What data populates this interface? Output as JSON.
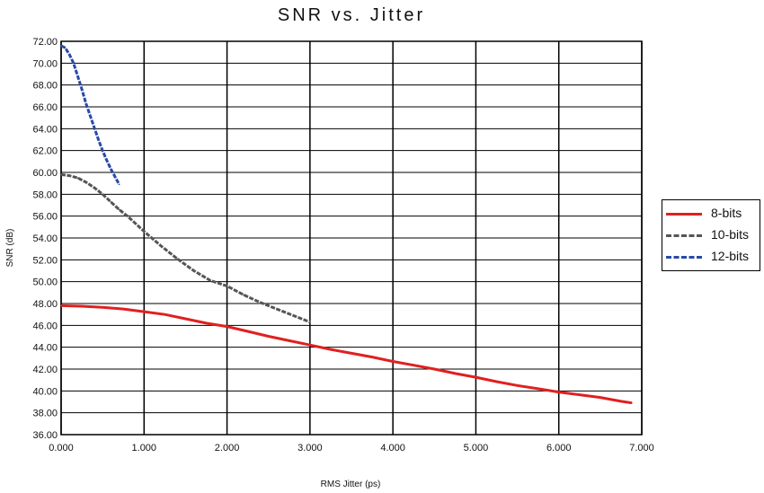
{
  "chart_data": {
    "type": "line",
    "title": "SNR vs. Jitter",
    "xlabel": "RMS Jitter (ps)",
    "ylabel": "SNR (dB)",
    "xlim": [
      0,
      7
    ],
    "ylim": [
      36,
      72
    ],
    "x_ticks": [
      "0.000",
      "1.000",
      "2.000",
      "3.000",
      "4.000",
      "5.000",
      "6.000",
      "7.000"
    ],
    "y_ticks": [
      "36.00",
      "38.00",
      "40.00",
      "42.00",
      "44.00",
      "46.00",
      "48.00",
      "50.00",
      "52.00",
      "54.00",
      "56.00",
      "58.00",
      "60.00",
      "62.00",
      "64.00",
      "66.00",
      "68.00",
      "70.00",
      "72.00"
    ],
    "grid": true,
    "legend_position": "right",
    "series": [
      {
        "name": "8-bits",
        "color": "#e02020",
        "dash": "solid",
        "x": [
          0.0,
          0.25,
          0.5,
          0.75,
          1.0,
          1.25,
          1.5,
          1.75,
          2.0,
          2.25,
          2.5,
          2.75,
          3.0,
          3.25,
          3.5,
          3.75,
          4.0,
          4.25,
          4.5,
          4.75,
          5.0,
          5.25,
          5.5,
          5.75,
          6.0,
          6.25,
          6.5,
          6.75,
          6.88
        ],
        "y": [
          47.8,
          47.75,
          47.65,
          47.5,
          47.25,
          47.0,
          46.6,
          46.2,
          45.9,
          45.45,
          45.0,
          44.6,
          44.2,
          43.8,
          43.45,
          43.1,
          42.7,
          42.35,
          42.0,
          41.6,
          41.25,
          40.85,
          40.5,
          40.2,
          39.9,
          39.65,
          39.4,
          39.05,
          38.9
        ]
      },
      {
        "name": "10-bits",
        "color": "#555555",
        "dash": "dashed",
        "x": [
          0.0,
          0.1,
          0.2,
          0.3,
          0.4,
          0.5,
          0.6,
          0.7,
          0.8,
          0.9,
          1.0,
          1.2,
          1.4,
          1.6,
          1.8,
          2.0,
          2.2,
          2.4,
          2.6,
          2.8,
          3.0
        ],
        "y": [
          59.8,
          59.7,
          59.5,
          59.1,
          58.6,
          58.0,
          57.3,
          56.6,
          56.0,
          55.3,
          54.6,
          53.3,
          52.1,
          51.0,
          50.1,
          49.6,
          48.8,
          48.1,
          47.5,
          46.9,
          46.3
        ]
      },
      {
        "name": "12-bits",
        "color": "#2a4aa8",
        "dash": "dashed",
        "x": [
          0.0,
          0.05,
          0.1,
          0.15,
          0.2,
          0.25,
          0.3,
          0.35,
          0.4,
          0.45,
          0.5,
          0.55,
          0.6,
          0.65,
          0.7
        ],
        "y": [
          71.6,
          71.4,
          70.8,
          70.0,
          68.8,
          67.6,
          66.3,
          65.2,
          64.1,
          63.0,
          62.0,
          61.1,
          60.3,
          59.6,
          58.9
        ]
      }
    ]
  }
}
